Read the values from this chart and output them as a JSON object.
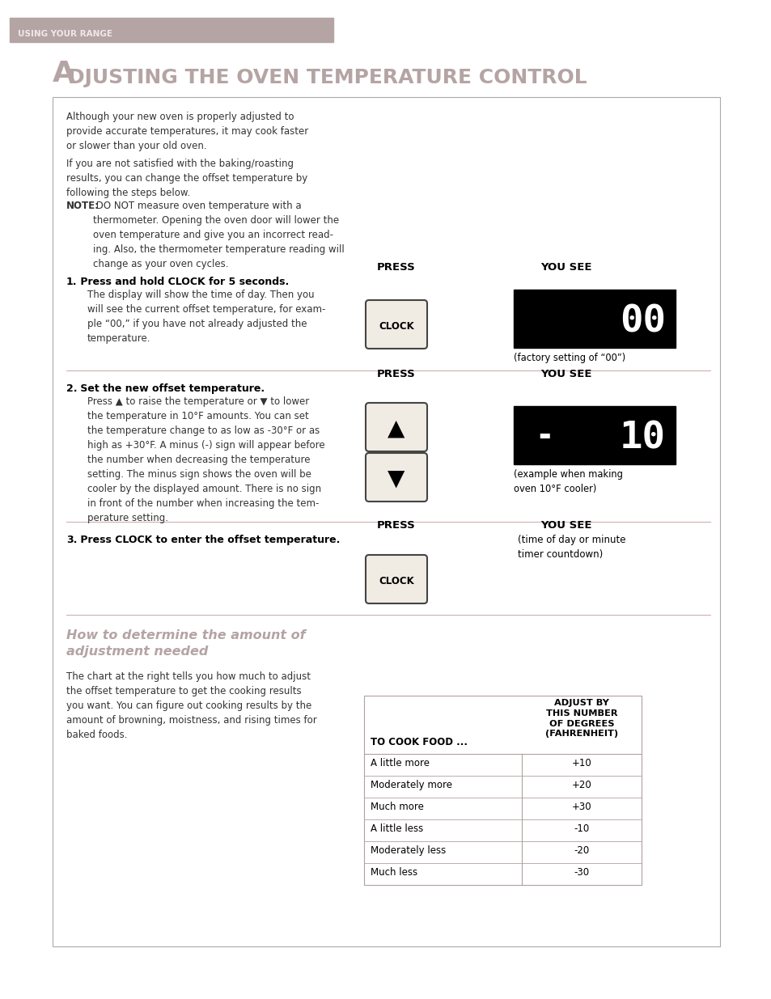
{
  "page_bg": "#ffffff",
  "header_bg": "#b5a4a4",
  "header_text": "USING YOUR RANGE",
  "header_text_color": "#f0e8e8",
  "title_A": "A",
  "title_rest": "DJUSTING THE OVEN TEMPERATURE CONTROL",
  "title_color": "#b5a4a4",
  "body_text_color": "#333333",
  "para1": "Although your new oven is properly adjusted to\nprovide accurate temperatures, it may cook faster\nor slower than your old oven.",
  "para2": "If you are not satisfied with the baking/roasting\nresults, you can change the offset temperature by\nfollowing the steps below.",
  "para3_bold": "NOTE:",
  "para3_rest": " DO NOT measure oven temperature with a\nthermometer. Opening the oven door will lower the\noven temperature and give you an incorrect read-\ning. Also, the thermometer temperature reading will\nchange as your oven cycles.",
  "step1_num": "1.",
  "step1_title": " Press and hold CLOCK for 5 seconds.",
  "step1_body": "The display will show the time of day. Then you\nwill see the current offset temperature, for exam-\nple “00,” if you have not already adjusted the\ntemperature.",
  "step2_num": "2.",
  "step2_title": " Set the new offset temperature.",
  "step2_body": "Press ▲ to raise the temperature or ▼ to lower\nthe temperature in 10°F amounts. You can set\nthe temperature change to as low as -30°F or as\nhigh as +30°F. A minus (-) sign will appear before\nthe number when decreasing the temperature\nsetting. The minus sign shows the oven will be\ncooler by the displayed amount. There is no sign\nin front of the number when increasing the tem-\nperature setting.",
  "step3_num": "3.",
  "step3_title": " Press CLOCK to enter the offset temperature.",
  "step3_col2": "(time of day or minute\ntimer countdown)",
  "press_label": "PRESS",
  "you_see_label": "YOU SEE",
  "display1_text": "00",
  "display1_caption": "(factory setting of “00”)",
  "display2_minus": "-",
  "display2_num": "10",
  "display2_caption": "(example when making\noven 10°F cooler)",
  "clock_label": "CLOCK",
  "section2_title": "How to determine the amount of\nadjustment needed",
  "section2_title_color": "#b5a4a4",
  "section2_body": "The chart at the right tells you how much to adjust\nthe offset temperature to get the cooking results\nyou want. You can figure out cooking results by the\namount of browning, moistness, and rising times for\nbaked foods.",
  "table_header1": "TO COOK FOOD ...",
  "table_header2": "ADJUST BY\nTHIS NUMBER\nOF DEGREES\n(FAHRENHEIT)",
  "table_rows": [
    [
      "A little more",
      "+10"
    ],
    [
      "Moderately more",
      "+20"
    ],
    [
      "Much more",
      "+30"
    ],
    [
      "A little less",
      "-10"
    ],
    [
      "Moderately less",
      "-20"
    ],
    [
      "Much less",
      "-30"
    ]
  ],
  "sep_color": "#c8a8a8",
  "table_border_color": "#b0a0a0",
  "box_border_color": "#aaaaaa"
}
